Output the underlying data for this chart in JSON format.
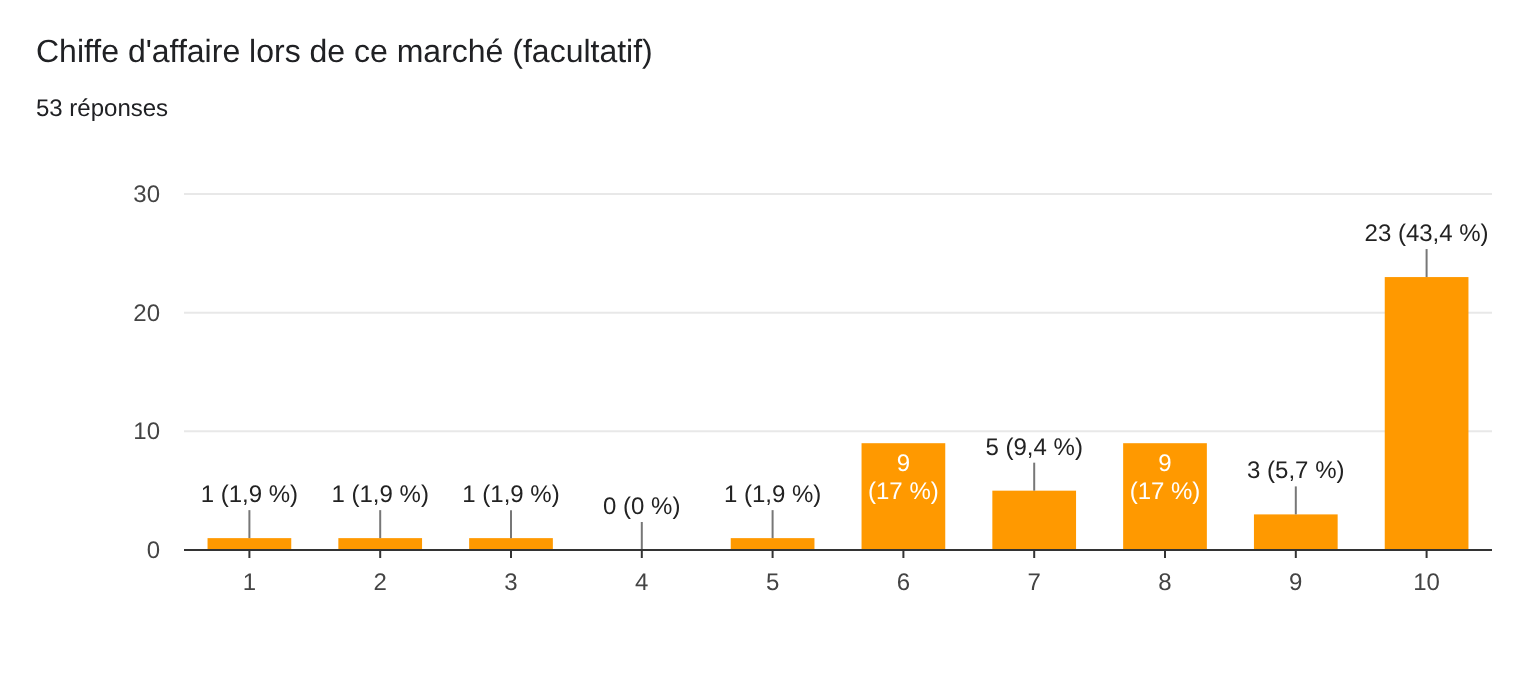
{
  "chart_data": {
    "type": "bar",
    "title": "Chiffe d'affaire lors de ce marché (facultatif)",
    "subtitle": "53 réponses",
    "categories": [
      "1",
      "2",
      "3",
      "4",
      "5",
      "6",
      "7",
      "8",
      "9",
      "10"
    ],
    "values": [
      1,
      1,
      1,
      0,
      1,
      9,
      5,
      9,
      3,
      23
    ],
    "color": "#ff9900",
    "value_labels": [
      "1 (1,9 %)",
      "1 (1,9 %)",
      "1 (1,9 %)",
      "0 (0 %)",
      "1 (1,9 %)",
      "9 (17 %)",
      "5 (9,4 %)",
      "9 (17 %)",
      "3 (5,7 %)",
      "23 (43,4 %)"
    ],
    "ylim": [
      0,
      30
    ],
    "yticks": [
      0,
      10,
      20,
      30
    ],
    "grid": true
  }
}
